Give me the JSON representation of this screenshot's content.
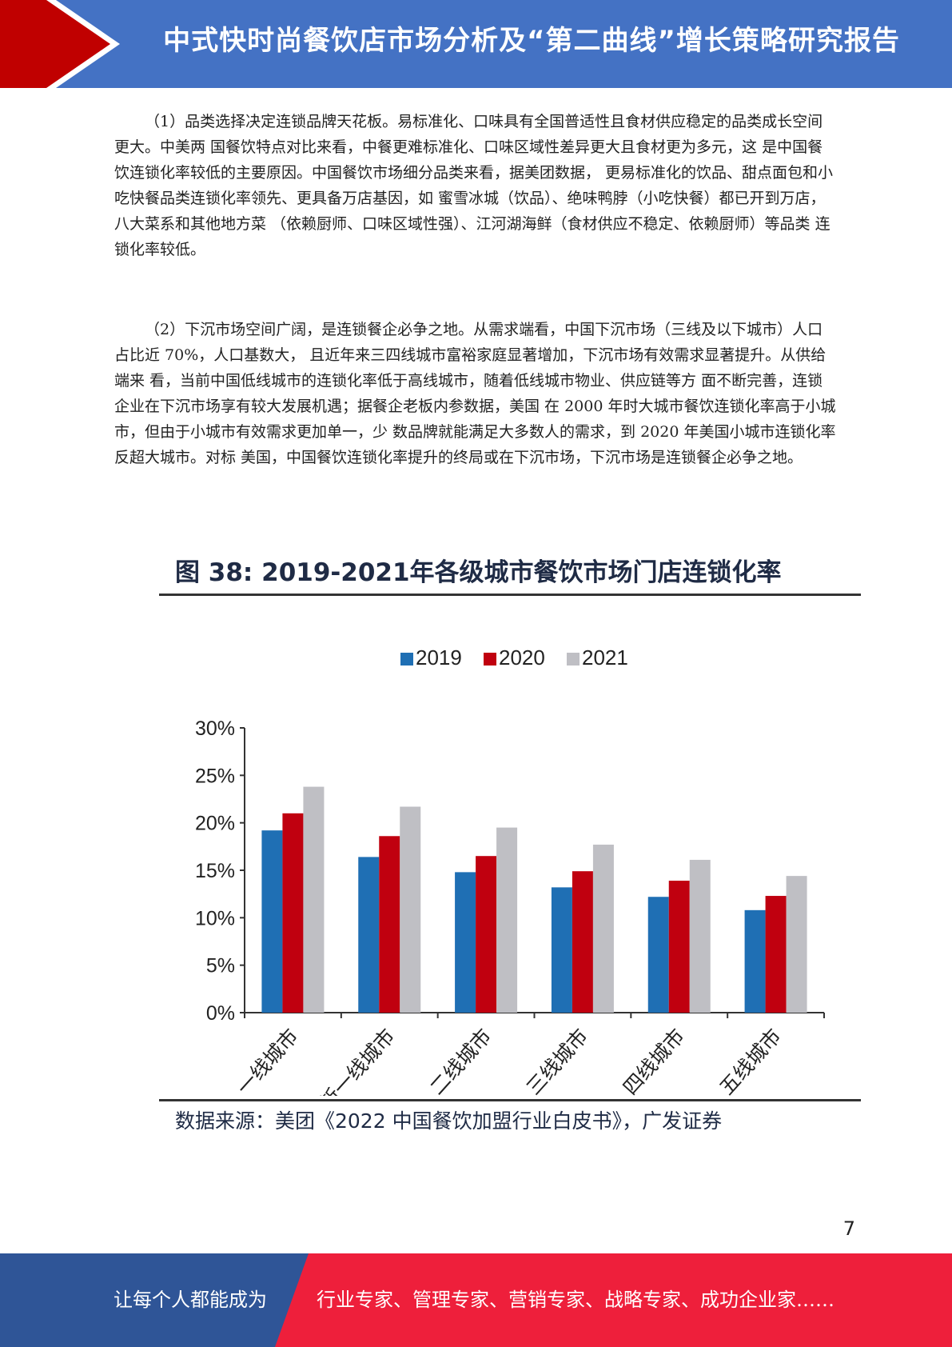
{
  "header": {
    "title": "中式快时尚餐饮店市场分析及“第二曲线”增长策略研究报告"
  },
  "colors": {
    "header_blue": "#4472c4",
    "header_red": "#c00000",
    "footer_blue": "#2f5597",
    "footer_red": "#ee1f3b",
    "series_2019": "#1f6fb4",
    "series_2020": "#c0000f",
    "series_2021": "#bfbfc4"
  },
  "body": {
    "para1": "（1）品类选择决定连锁品牌天花板。易标准化、口味具有全国普适性且食材供应稳定的品类成长空间更大。中美两 国餐饮特点对比来看，中餐更难标准化、口味区域性差异更大且食材更为多元，这 是中国餐饮连锁化率较低的主要原因。中国餐饮市场细分品类来看，据美团数据， 更易标准化的饮品、甜点面包和小吃快餐品类连锁化率领先、更具备万店基因，如 蜜雪冰城（饮品）、绝味鸭脖（小吃快餐）都已开到万店，八大菜系和其他地方菜 （依赖厨师、口味区域性强）、江河湖海鲜（食材供应不稳定、依赖厨师）等品类 连锁化率较低。",
    "para2": "（2）下沉市场空间广阔，是连锁餐企必争之地。从需求端看，中国下沉市场（三线及以下城市）人口占比近 70%，人口基数大， 且近年来三四线城市富裕家庭显著增加，下沉市场有效需求显著提升。从供给端来 看，当前中国低线城市的连锁化率低于高线城市，随着低线城市物业、供应链等方 面不断完善，连锁企业在下沉市场享有较大发展机遇；据餐企老板内参数据，美国 在 2000 年时大城市餐饮连锁化率高于小城市，但由于小城市有效需求更加单一，少 数品牌就能满足大多数人的需求，到 2020 年美国小城市连锁化率反超大城市。对标 美国，中国餐饮连锁化率提升的终局或在下沉市场，下沉市场是连锁餐企必争之地。"
  },
  "figure": {
    "title": "图  38: 2019-2021年各级城市餐饮市场门店连锁化率",
    "source": "数据来源：美团《2022 中国餐饮加盟行业白皮书》，广发证券"
  },
  "chart_data": {
    "type": "bar",
    "title": "图  38: 2019-2021年各级城市餐饮市场门店连锁化率",
    "categories": [
      "一线城市",
      "新一线城市",
      "二线城市",
      "三线城市",
      "四线城市",
      "五线城市"
    ],
    "series": [
      {
        "name": "2019",
        "values": [
          19.2,
          16.4,
          14.8,
          13.2,
          12.2,
          10.8
        ]
      },
      {
        "name": "2020",
        "values": [
          21.0,
          18.6,
          16.5,
          14.9,
          13.9,
          12.3
        ]
      },
      {
        "name": "2021",
        "values": [
          23.8,
          21.7,
          19.5,
          17.7,
          16.1,
          14.4
        ]
      }
    ],
    "yticks": [
      "0%",
      "5%",
      "10%",
      "15%",
      "20%",
      "25%",
      "30%"
    ],
    "ylim": [
      0,
      30
    ],
    "legend": "top-center",
    "grid": false,
    "source": "数据来源：美团《2022 中国餐饮加盟行业白皮书》，广发证券"
  },
  "page_number": "7",
  "footer": {
    "left_text": "让每个人都能成为",
    "right_text": "行业专家、管理专家、营销专家、战略专家、成功企业家……"
  }
}
